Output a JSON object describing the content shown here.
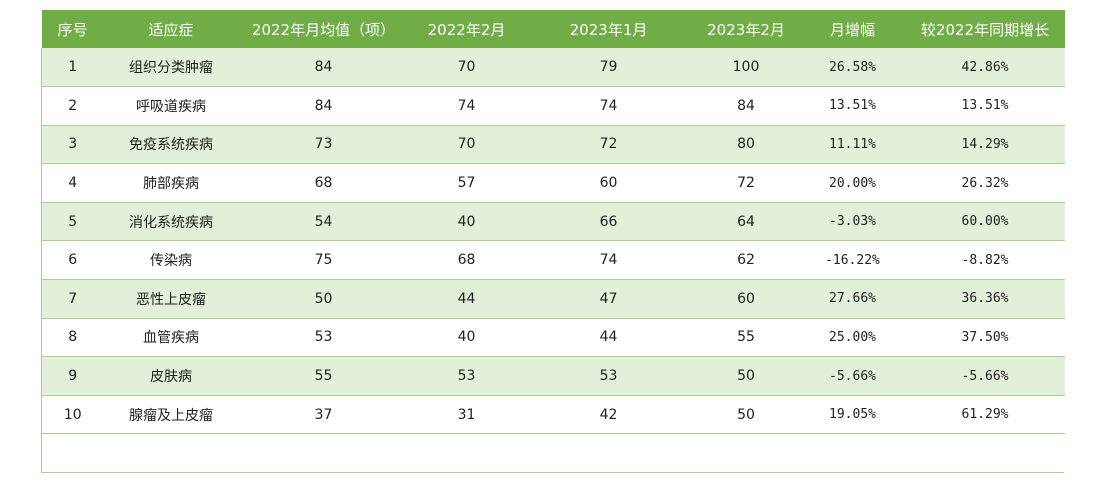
{
  "headers": [
    "序号",
    "适应症",
    "2022年月均值（项）",
    "2022年2月",
    "2023年1月",
    "2023年2月",
    "月增幅",
    "较2022年同期增长"
  ],
  "rows": [
    [
      "1",
      "组织分类肿瘤",
      "84",
      "70",
      "79",
      "100",
      "26.58%",
      "42.86%"
    ],
    [
      "2",
      "呼吸道疾病",
      "84",
      "74",
      "74",
      "84",
      "13.51%",
      "13.51%"
    ],
    [
      "3",
      "免疫系统疾病",
      "73",
      "70",
      "72",
      "80",
      "11.11%",
      "14.29%"
    ],
    [
      "4",
      "肺部疾病",
      "68",
      "57",
      "60",
      "72",
      "20.00%",
      "26.32%"
    ],
    [
      "5",
      "消化系统疾病",
      "54",
      "40",
      "66",
      "64",
      "-3.03%",
      "60.00%"
    ],
    [
      "6",
      "传染病",
      "75",
      "68",
      "74",
      "62",
      "-16.22%",
      "-8.82%"
    ],
    [
      "7",
      "恶性上皮瘤",
      "50",
      "44",
      "47",
      "60",
      "27.66%",
      "36.36%"
    ],
    [
      "8",
      "血管疾病",
      "53",
      "40",
      "44",
      "55",
      "25.00%",
      "37.50%"
    ],
    [
      "9",
      "皮肤病",
      "55",
      "53",
      "53",
      "50",
      "-5.66%",
      "-5.66%"
    ],
    [
      "10",
      "腺瘤及上皮瘤",
      "37",
      "31",
      "42",
      "50",
      "19.05%",
      "61.29%"
    ]
  ],
  "colors": {
    "header_bg": "#70ad47",
    "band": "#e2efd9",
    "grid": "#a9d18e"
  }
}
